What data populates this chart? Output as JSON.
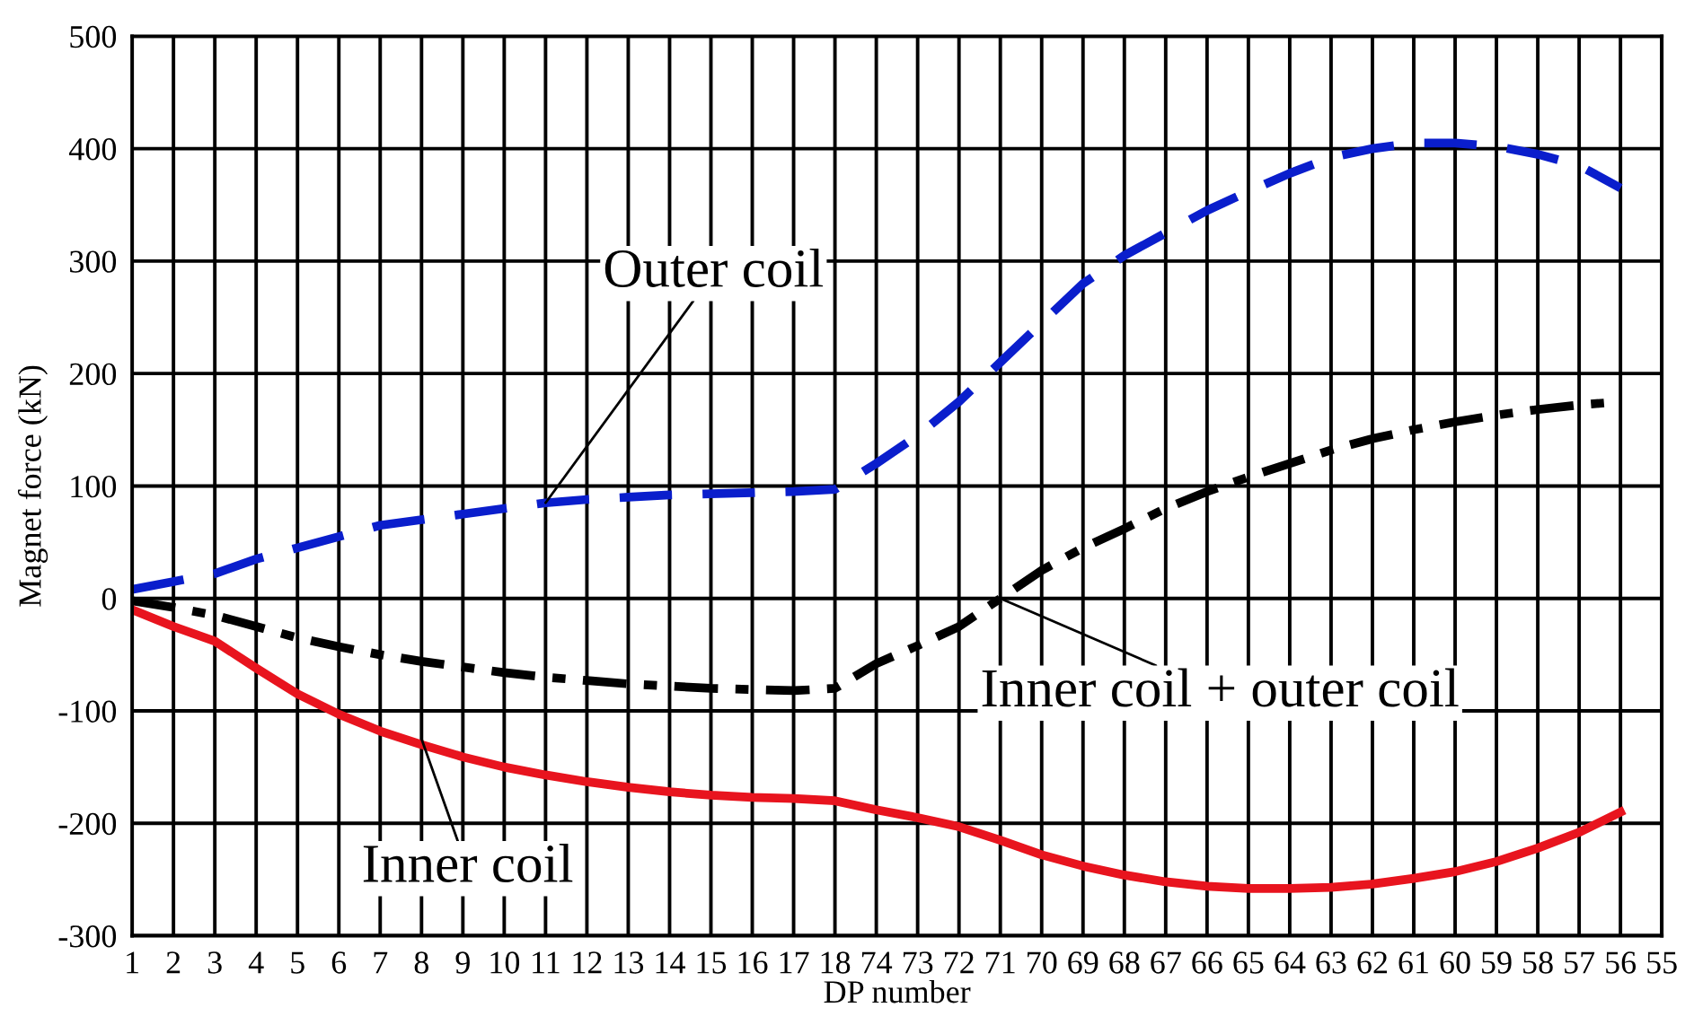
{
  "chart_data": {
    "type": "line",
    "xlabel": "DP number",
    "ylabel": "Magnet force (kN)",
    "categories": [
      "1",
      "2",
      "3",
      "4",
      "5",
      "6",
      "7",
      "8",
      "9",
      "10",
      "11",
      "12",
      "13",
      "14",
      "15",
      "16",
      "17",
      "18",
      "74",
      "73",
      "72",
      "71",
      "70",
      "69",
      "68",
      "67",
      "66",
      "65",
      "64",
      "63",
      "62",
      "61",
      "60",
      "59",
      "58",
      "57",
      "56",
      "55"
    ],
    "series": [
      {
        "color": "#0a1ecc",
        "line_style": "dashed",
        "values": [
          8,
          15,
          22,
          35,
          45,
          55,
          65,
          70,
          75,
          80,
          85,
          88,
          90,
          92,
          93,
          94,
          95,
          97,
          120,
          145,
          175,
          210,
          245,
          280,
          305,
          325,
          345,
          362,
          378,
          392,
          400,
          405,
          405,
          402,
          395,
          385,
          365,
          null
        ]
      },
      {
        "color": "#000000",
        "line_style": "dashdot",
        "values": [
          -2,
          -8,
          -15,
          -25,
          -35,
          -43,
          -50,
          -56,
          -61,
          -66,
          -70,
          -73,
          -76,
          -78,
          -80,
          -81,
          -82,
          -80,
          -58,
          -42,
          -25,
          0,
          25,
          45,
          62,
          80,
          95,
          108,
          120,
          132,
          142,
          150,
          157,
          163,
          168,
          172,
          175,
          null
        ]
      },
      {
        "color": "#e8141e",
        "line_style": "solid",
        "values": [
          -10,
          -25,
          -38,
          -62,
          -85,
          -103,
          -118,
          -130,
          -141,
          -150,
          -157,
          -163,
          -168,
          -172,
          -175,
          -177,
          -178,
          -180,
          -188,
          -195,
          -203,
          -215,
          -228,
          -238,
          -246,
          -252,
          -256,
          -258,
          -258,
          -257,
          -254,
          -249,
          -243,
          -234,
          -222,
          -208,
          -190,
          null
        ]
      }
    ],
    "annotations": [
      {
        "text": "Outer coil",
        "x": "11",
        "y": 85
      },
      {
        "text": "Inner coil + outer coil",
        "x": "71",
        "y": 0
      },
      {
        "text": "Inner coil",
        "x": "8",
        "y": -125
      }
    ],
    "ylim": [
      -300,
      500
    ],
    "yticks": [
      -300,
      -200,
      -100,
      0,
      100,
      200,
      300,
      400,
      500
    ],
    "grid": true
  }
}
